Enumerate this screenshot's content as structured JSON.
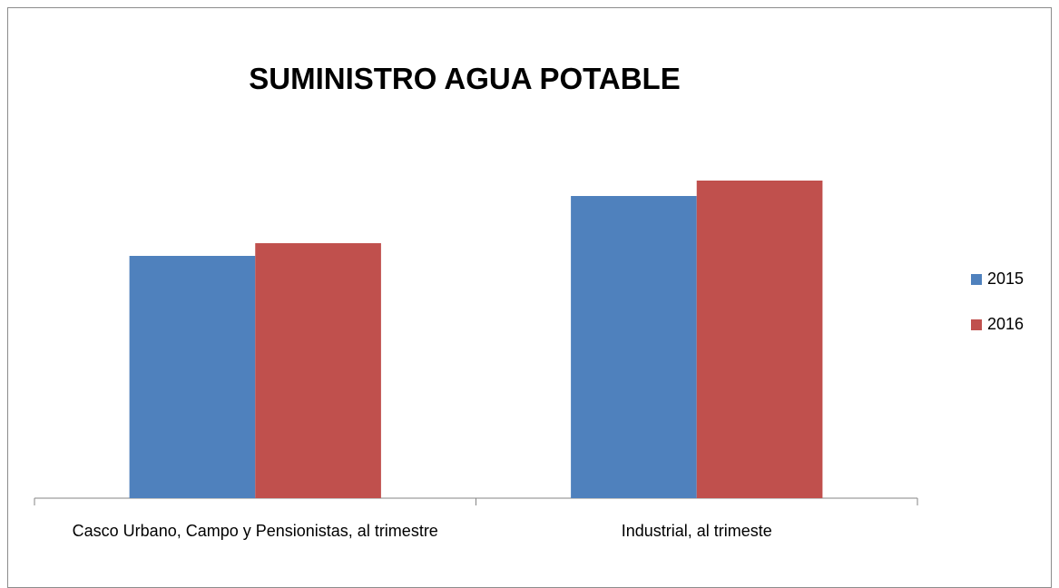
{
  "chart_data": {
    "type": "bar",
    "title": "SUMINISTRO  AGUA  POTABLE",
    "categories": [
      "Casco Urbano, Campo y Pensionistas, al trimestre",
      "Industrial, al trimeste"
    ],
    "series": [
      {
        "name": "2015",
        "color": "#4f81bd",
        "values": [
          267,
          333
        ]
      },
      {
        "name": "2016",
        "color": "#c0504d",
        "values": [
          281,
          350
        ]
      }
    ],
    "ylim": [
      0,
      420
    ],
    "legend": "right"
  }
}
